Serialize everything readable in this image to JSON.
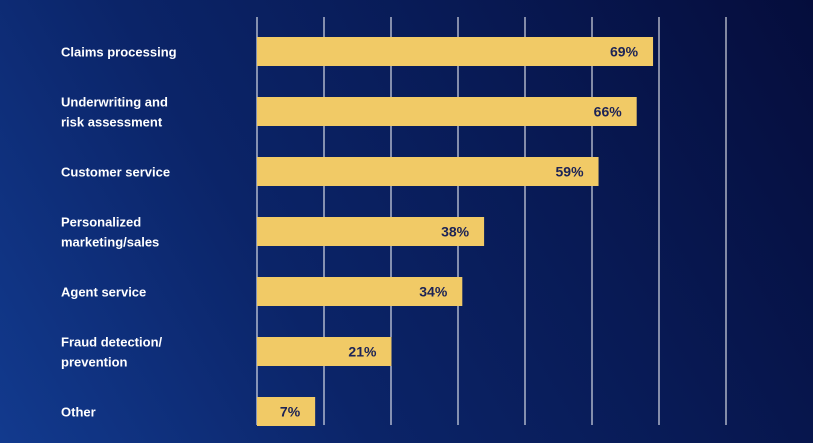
{
  "chart_data": {
    "type": "bar",
    "orientation": "horizontal",
    "title": "",
    "xlabel": "",
    "ylabel": "",
    "grid": true,
    "categories": [
      [
        "Claims processing"
      ],
      [
        "Underwriting and",
        "risk assessment"
      ],
      [
        "Customer service"
      ],
      [
        "Personalized",
        "marketing/sales"
      ],
      [
        "Agent service"
      ],
      [
        "Fraud detection/",
        "prevention"
      ],
      [
        "Other"
      ]
    ],
    "values": [
      69,
      66,
      59,
      38,
      34,
      21,
      7
    ],
    "value_labels": [
      "69%",
      "66%",
      "59%",
      "38%",
      "34%",
      "21%",
      "7%"
    ],
    "colors": {
      "bar": "#f1ca66",
      "value_text": "#1c2356",
      "label_text": "#ffffff",
      "grid": "#ffffff"
    }
  }
}
